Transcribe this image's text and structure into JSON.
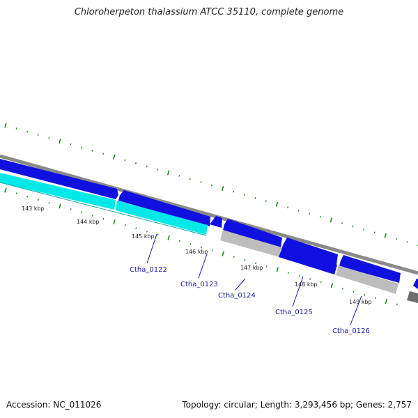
{
  "title": "Chloroherpeton thalassium ATCC 35110, complete genome",
  "footer": {
    "accession": "Accession: NC_011026",
    "summary": "Topology: circular; Length: 3,293,456 bp; Genes: 2,757"
  },
  "colors": {
    "background": "#ffffff",
    "backbone": "#8a8a8a",
    "gene_blue": "#1010e0",
    "gene_cyan": "#00e8e8",
    "gene_gray": "#bdbdbd",
    "gene_dark_gray": "#6e6e6e",
    "tick": "#1a8a1a",
    "label": "#1a1aa8"
  },
  "map": {
    "ruler_labels": [
      {
        "kbp": 143,
        "text": "143 kbp"
      },
      {
        "kbp": 144,
        "text": "144 kbp"
      },
      {
        "kbp": 145,
        "text": "145 kbp"
      },
      {
        "kbp": 146,
        "text": "146 kbp"
      },
      {
        "kbp": 147,
        "text": "147 kbp"
      },
      {
        "kbp": 148,
        "text": "148 kbp"
      },
      {
        "kbp": 149,
        "text": "149 kbp"
      }
    ],
    "gene_labels": [
      {
        "text": "Ctha_0122"
      },
      {
        "text": "Ctha_0123"
      },
      {
        "text": "Ctha_0124"
      },
      {
        "text": "Ctha_0125"
      },
      {
        "text": "Ctha_0126"
      }
    ]
  }
}
